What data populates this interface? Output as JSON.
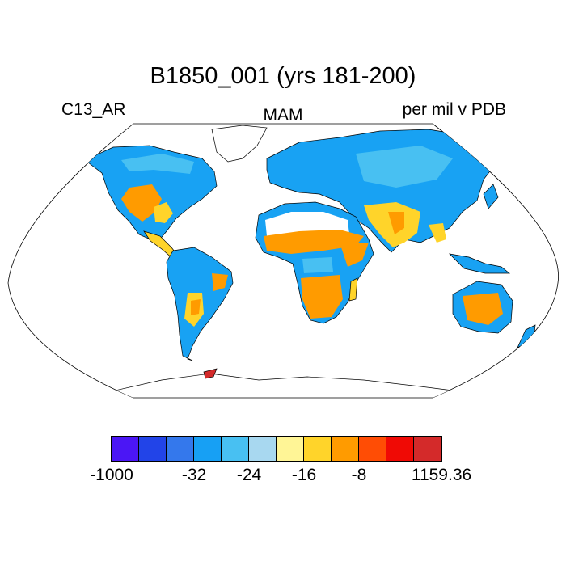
{
  "title": "B1850_001 (yrs 181-200)",
  "left_label": "C13_AR",
  "center_label": "MAM",
  "right_label": "per mil v PDB",
  "colorbar": {
    "colors": [
      "#4b16f5",
      "#2244e8",
      "#3478ec",
      "#17a0f4",
      "#48c0f2",
      "#a8d8f0",
      "#fff596",
      "#ffd42a",
      "#ff9b00",
      "#ff4d05",
      "#f00a05",
      "#d42a2a"
    ],
    "labels": [
      {
        "text": "-1000",
        "box": 0
      },
      {
        "text": "-32",
        "box": 3
      },
      {
        "text": "-24",
        "box": 5
      },
      {
        "text": "-16",
        "box": 7
      },
      {
        "text": "-8",
        "box": 9
      },
      {
        "text": "1159.36",
        "box": 12
      }
    ]
  }
}
